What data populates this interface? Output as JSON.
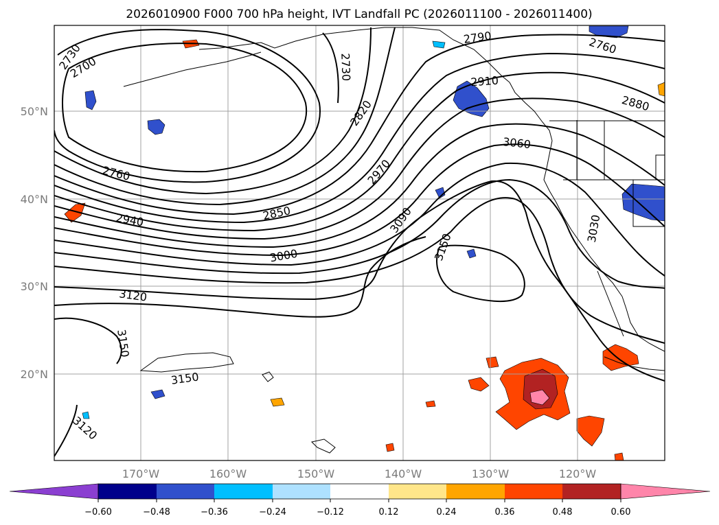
{
  "title": "2026010900 F000 700 hPa height, IVT Landfall PC (2026011100 - 2026011400)",
  "lat_labels": [
    "50°N",
    "40°N",
    "30°N",
    "20°N"
  ],
  "lon_labels": [
    "170°W",
    "160°W",
    "150°W",
    "140°W",
    "130°W",
    "120°W"
  ],
  "contour_labels": {
    "c2730_a": "2730",
    "c2700": "2700",
    "c2730_b": "2730",
    "c2790": "2790",
    "c2760_a": "2760",
    "c2910": "2910",
    "c2880": "2880",
    "c2820": "2820",
    "c3060": "3060",
    "c2760_b": "2760",
    "c2970": "2970",
    "c2850": "2850",
    "c2940": "2940",
    "c3090": "3090",
    "c3030": "3030",
    "c3000": "3000",
    "c3150_a": "3150",
    "c3120_a": "3120",
    "c3150_b": "3150",
    "c3150_c": "3150",
    "c3120_b": "3120"
  },
  "colorbar": {
    "ticks": [
      "−0.60",
      "−0.48",
      "−0.36",
      "−0.24",
      "−0.12",
      "0.12",
      "0.24",
      "0.36",
      "0.48",
      "0.60"
    ],
    "colors": [
      "#8b3fd1",
      "#00008b",
      "#3050cc",
      "#00bfff",
      "#aee1ff",
      "#ffffff",
      "#ffe68a",
      "#ffa500",
      "#ff4500",
      "#b22222",
      "#ff85aa"
    ]
  },
  "fill_colors": {
    "neg_dark": "#3050cc",
    "neg_light": "#00bfff",
    "pos_yellow": "#ffe68a",
    "pos_orange": "#ffa500",
    "pos_red": "#ff4500",
    "pos_darkred": "#b22222",
    "pos_pink": "#ff85aa"
  }
}
